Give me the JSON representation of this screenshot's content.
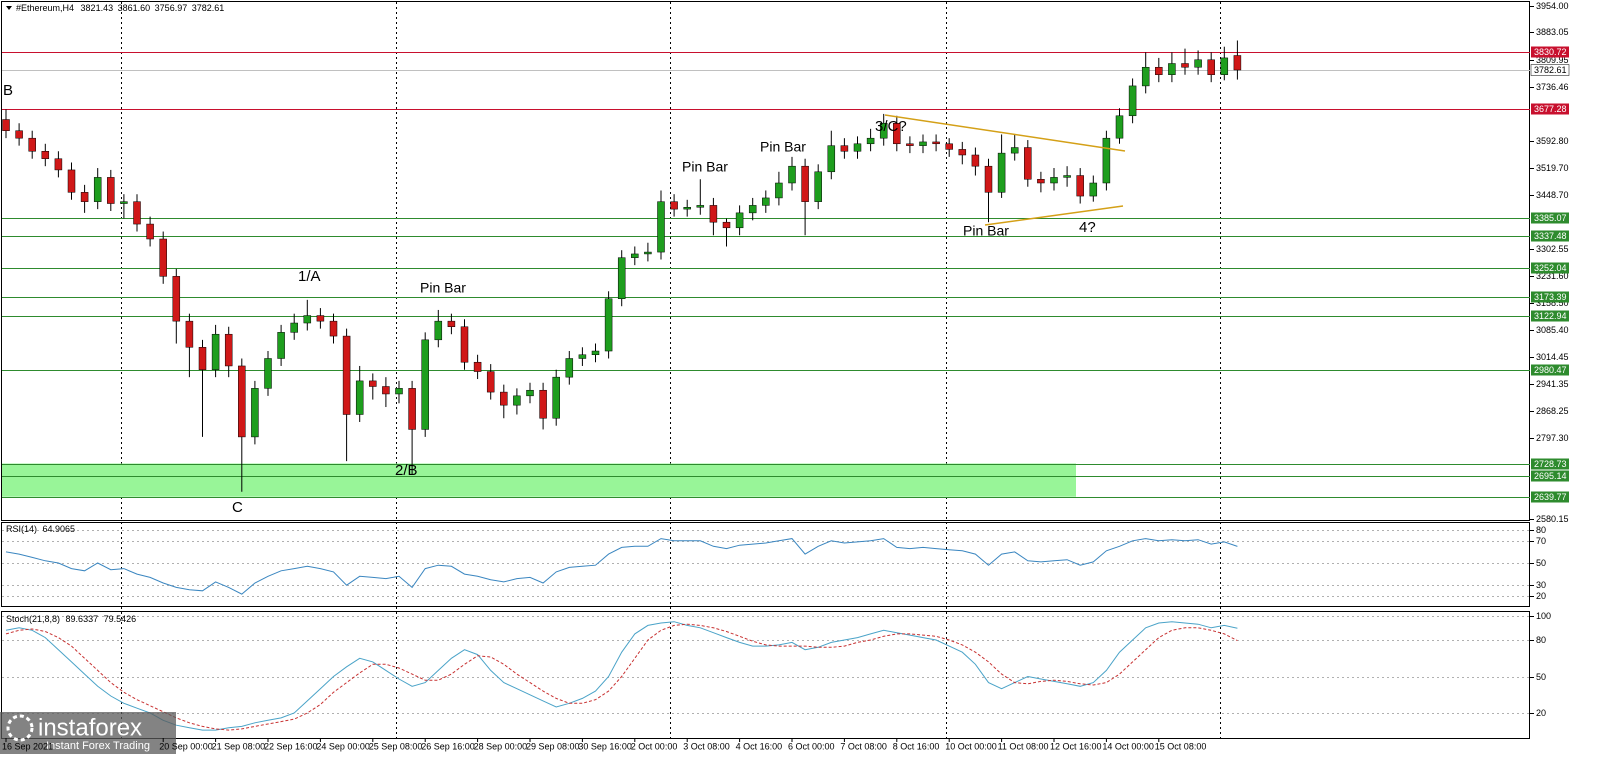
{
  "chart_data": [
    {
      "type": "candlestick",
      "title": "#Ethereum,H4",
      "title_values": [
        "3821.43",
        "3861.60",
        "3756.97",
        "3782.61"
      ],
      "categories": [
        "16 Sep 2021",
        null,
        null,
        null,
        null,
        null,
        null,
        null,
        null,
        null,
        null,
        null,
        "20 Sep 00:00",
        null,
        null,
        null,
        "21 Sep 08:00",
        null,
        null,
        null,
        "22 Sep 16:00",
        null,
        null,
        null,
        "24 Sep 00:00",
        null,
        null,
        null,
        "25 Sep 08:00",
        null,
        null,
        null,
        "26 Sep 16:00",
        null,
        null,
        null,
        "28 Sep 00:00",
        null,
        null,
        null,
        "29 Sep 08:00",
        null,
        null,
        null,
        "30 Sep 16:00",
        null,
        null,
        null,
        "2 Oct 00:00",
        null,
        null,
        null,
        "3 Oct 08:00",
        null,
        null,
        null,
        "4 Oct 16:00",
        null,
        null,
        null,
        "6 Oct 00:00",
        null,
        null,
        null,
        "7 Oct 08:00",
        null,
        null,
        null,
        "8 Oct 16:00",
        null,
        null,
        null,
        "10 Oct 00:00",
        null,
        null,
        null,
        "11 Oct 08:00",
        null,
        null,
        null,
        "12 Oct 16:00",
        null,
        null,
        null,
        "14 Oct 00:00",
        null,
        null,
        null,
        "15 Oct 08:00",
        null,
        null,
        null,
        null,
        null,
        null
      ],
      "open": [
        3650,
        3620,
        3600,
        3565,
        3545,
        3515,
        3455,
        3430,
        3495,
        3425,
        3430,
        3370,
        3330,
        3230,
        3110,
        3040,
        2980,
        3075,
        2990,
        2800,
        2930,
        3010,
        3080,
        3105,
        3125,
        3110,
        3070,
        2860,
        2950,
        2935,
        2915,
        2930,
        2820,
        3060,
        3110,
        3095,
        3000,
        2975,
        2920,
        2885,
        2910,
        2925,
        2850,
        2960,
        3010,
        3020,
        3030,
        3170,
        3280,
        3290,
        3295,
        3430,
        3410,
        3415,
        3420,
        3375,
        3360,
        3400,
        3420,
        3440,
        3480,
        3525,
        3430,
        3510,
        3580,
        3565,
        3585,
        3600,
        3640,
        3585,
        3580,
        3590,
        3585,
        3570,
        3555,
        3525,
        3455,
        3560,
        3575,
        3490,
        3480,
        3495,
        3500,
        3445,
        3480,
        3600,
        3660,
        3740,
        3790,
        3770,
        3800,
        3790,
        3810,
        3770,
        3821.43
      ],
      "high": [
        3677,
        3640,
        3620,
        3585,
        3565,
        3535,
        3475,
        3520,
        3515,
        3450,
        3450,
        3390,
        3350,
        3250,
        3130,
        3060,
        3100,
        3095,
        3010,
        2950,
        3030,
        3100,
        3130,
        3167,
        3145,
        3130,
        3090,
        2990,
        2970,
        2960,
        2950,
        2950,
        3080,
        3140,
        3130,
        3115,
        3020,
        2995,
        2940,
        2930,
        2945,
        2945,
        2980,
        3030,
        3040,
        3050,
        3190,
        3300,
        3310,
        3320,
        3460,
        3450,
        3435,
        3490,
        3440,
        3385,
        3420,
        3440,
        3460,
        3510,
        3550,
        3545,
        3530,
        3620,
        3600,
        3605,
        3625,
        3665,
        3660,
        3605,
        3610,
        3610,
        3600,
        3590,
        3575,
        3545,
        3610,
        3610,
        3595,
        3510,
        3520,
        3525,
        3520,
        3500,
        3620,
        3680,
        3760,
        3830,
        3815,
        3830,
        3840,
        3835,
        3830,
        3845,
        3861.6
      ],
      "low": [
        3600,
        3580,
        3545,
        3525,
        3495,
        3435,
        3400,
        3410,
        3405,
        3385,
        3350,
        3310,
        3210,
        3050,
        2960,
        2800,
        2960,
        2960,
        2653,
        2780,
        2910,
        2990,
        3060,
        3085,
        3090,
        3050,
        2735,
        2840,
        2900,
        2880,
        2890,
        2698,
        2800,
        3040,
        3075,
        2980,
        2955,
        2900,
        2850,
        2860,
        2890,
        2820,
        2830,
        2940,
        2990,
        3000,
        3010,
        3150,
        3260,
        3270,
        3275,
        3390,
        3390,
        3395,
        3340,
        3310,
        3340,
        3380,
        3400,
        3420,
        3460,
        3340,
        3410,
        3490,
        3545,
        3545,
        3565,
        3580,
        3565,
        3560,
        3560,
        3565,
        3550,
        3530,
        3500,
        3375,
        3440,
        3540,
        3470,
        3455,
        3460,
        3470,
        3425,
        3430,
        3460,
        3585,
        3640,
        3720,
        3750,
        3750,
        3770,
        3770,
        3750,
        3755,
        3756.97
      ],
      "close": [
        3620,
        3600,
        3565,
        3545,
        3515,
        3455,
        3430,
        3495,
        3425,
        3430,
        3370,
        3330,
        3230,
        3110,
        3040,
        2980,
        3075,
        2990,
        2800,
        2930,
        3010,
        3080,
        3105,
        3125,
        3110,
        3070,
        2860,
        2950,
        2935,
        2915,
        2930,
        2820,
        3060,
        3110,
        3095,
        3000,
        2975,
        2920,
        2885,
        2910,
        2925,
        2850,
        2960,
        3010,
        3020,
        3030,
        3170,
        3280,
        3290,
        3295,
        3430,
        3410,
        3415,
        3420,
        3375,
        3360,
        3400,
        3420,
        3440,
        3480,
        3525,
        3430,
        3510,
        3580,
        3565,
        3585,
        3600,
        3640,
        3585,
        3580,
        3590,
        3585,
        3570,
        3555,
        3525,
        3455,
        3560,
        3575,
        3490,
        3480,
        3495,
        3500,
        3445,
        3480,
        3600,
        3660,
        3740,
        3790,
        3770,
        3800,
        3790,
        3810,
        3770,
        3815,
        3782.61
      ],
      "up_color": "#1e9e1e",
      "down_color": "#d01818",
      "ylim": [
        2577.47,
        3964.71
      ],
      "yticks": [
        {
          "value": 3954,
          "label": "3954.00"
        },
        3883.05,
        3809.95,
        3736.46,
        {
          "value": 3592.8,
          "label": "3592.80"
        },
        {
          "value": 3519.7,
          "label": "3519.70"
        },
        {
          "value": 3448.7,
          "label": "3448.70"
        },
        3302.55,
        {
          "value": 3231.6,
          "label": "3231.60"
        },
        {
          "value": 3158.5,
          "label": "3158.50"
        },
        {
          "value": 3085.4,
          "label": "3085.40"
        },
        3014.45,
        2941.35,
        2868.25,
        {
          "value": 2797.3,
          "label": "2797.30"
        },
        2580.15
      ],
      "levels": [
        {
          "value": 3830.72,
          "color": "#c8102e"
        },
        {
          "value": 3677.28,
          "color": "#c8102e"
        },
        {
          "value": 3385.07,
          "color": "#2e8b2e"
        },
        {
          "value": 3337.48,
          "color": "#2e8b2e"
        },
        {
          "value": 3252.04,
          "color": "#2e8b2e"
        },
        {
          "value": 3173.39,
          "color": "#2e8b2e"
        },
        {
          "value": 3122.94,
          "color": "#2e8b2e"
        },
        {
          "value": 2980.47,
          "color": "#2e8b2e"
        },
        {
          "value": 2728.73,
          "color": "#2e8b2e"
        },
        {
          "value": 2695.14,
          "color": "#2e8b2e"
        },
        {
          "value": 2639.77,
          "color": "#2e8b2e"
        }
      ],
      "zones": [
        {
          "from": 2639.77,
          "to": 2728.73,
          "color": "#98f598"
        }
      ],
      "annotations": [
        "B",
        "1/A",
        "C",
        "2/B",
        "Pin Bar",
        "Pin Bar",
        "Pin Bar",
        "Pin Bar",
        "3/C?",
        "4?"
      ]
    },
    {
      "type": "line",
      "title": "RSI(14)",
      "ylim": [
        11.3,
        86
      ],
      "yticks": [
        80,
        70,
        50,
        30,
        20
      ],
      "grid": true,
      "series": [
        {
          "color": "#3a86c0",
          "values": [
            60,
            58,
            55,
            52,
            50,
            45,
            43,
            50,
            44,
            45,
            40,
            37,
            32,
            28,
            26,
            25,
            33,
            28,
            22,
            32,
            38,
            43,
            45,
            47,
            45,
            42,
            30,
            38,
            37,
            36,
            38,
            28,
            45,
            48,
            47,
            40,
            38,
            35,
            33,
            36,
            37,
            32,
            42,
            46,
            47,
            48,
            58,
            64,
            65,
            65,
            72,
            70,
            70,
            70,
            65,
            63,
            66,
            67,
            68,
            70,
            72,
            58,
            65,
            70,
            68,
            69,
            70,
            72,
            64,
            63,
            64,
            63,
            62,
            61,
            58,
            48,
            58,
            60,
            52,
            51,
            52,
            53,
            48,
            51,
            61,
            65,
            70,
            72,
            70,
            71,
            70,
            71,
            67,
            69,
            64.9065
          ]
        }
      ]
    },
    {
      "type": "line",
      "title": "Stoch(21,8,8)",
      "ylim": [
        -0.5,
        103
      ],
      "yticks": [
        100,
        80,
        50,
        20
      ],
      "grid": true,
      "series": [
        {
          "color": "#4aa3c8",
          "values": [
            88,
            90,
            88,
            82,
            72,
            62,
            52,
            42,
            34,
            28,
            24,
            20,
            14,
            10,
            8,
            6,
            6,
            8,
            9,
            12,
            14,
            16,
            20,
            30,
            40,
            50,
            58,
            65,
            62,
            55,
            48,
            42,
            45,
            55,
            65,
            72,
            68,
            55,
            45,
            40,
            35,
            30,
            25,
            28,
            32,
            38,
            50,
            70,
            85,
            92,
            94,
            95,
            92,
            90,
            86,
            82,
            78,
            75,
            75,
            76,
            78,
            72,
            74,
            78,
            80,
            82,
            85,
            88,
            86,
            84,
            82,
            80,
            75,
            70,
            60,
            45,
            40,
            45,
            50,
            48,
            46,
            44,
            42,
            45,
            55,
            70,
            80,
            90,
            94,
            95,
            94,
            93,
            90,
            92,
            89.6337
          ]
        },
        {
          "color": "#c83232",
          "dash": true,
          "values": [
            85,
            88,
            89,
            87,
            82,
            75,
            65,
            55,
            45,
            37,
            31,
            26,
            21,
            16,
            12,
            9,
            7,
            6,
            7,
            9,
            11,
            13,
            15,
            20,
            27,
            37,
            45,
            53,
            60,
            60,
            57,
            52,
            47,
            47,
            52,
            60,
            67,
            66,
            60,
            52,
            45,
            38,
            32,
            28,
            28,
            31,
            38,
            50,
            65,
            80,
            88,
            92,
            93,
            92,
            90,
            87,
            83,
            79,
            76,
            75,
            75,
            75,
            74,
            74,
            75,
            78,
            80,
            83,
            85,
            85,
            84,
            83,
            80,
            76,
            70,
            62,
            52,
            45,
            44,
            46,
            47,
            46,
            44,
            43,
            45,
            52,
            62,
            72,
            82,
            88,
            90,
            90,
            88,
            85,
            79.5426
          ]
        }
      ]
    }
  ],
  "watermark": {
    "brand": "instaforex",
    "tagline": "Instant Forex Trading"
  }
}
